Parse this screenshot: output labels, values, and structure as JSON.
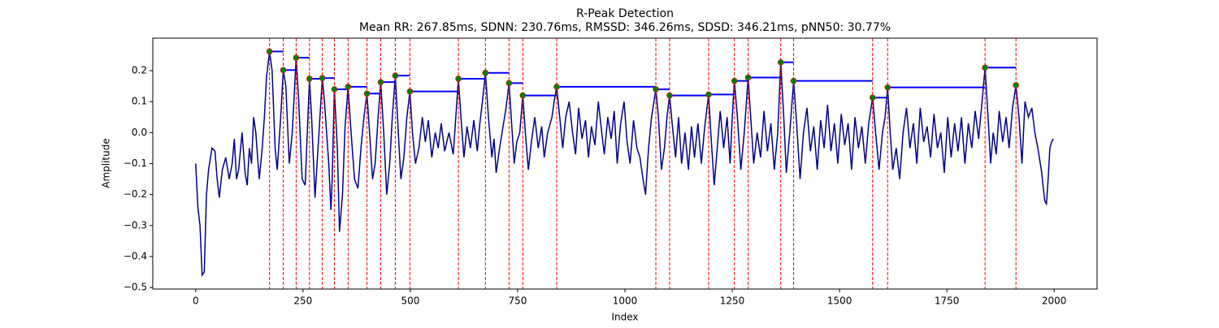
{
  "chart_data": {
    "type": "line",
    "title": "R-Peak Detection",
    "subtitle": "Mean RR: 267.85ms, SDNN: 230.76ms, RMSSD: 346.26ms, SDSD: 346.21ms, pNN50: 30.77%",
    "xlabel": "Index",
    "ylabel": "Amplitude",
    "xlim": [
      -100,
      2100
    ],
    "ylim": [
      -0.505,
      0.305
    ],
    "xticks": [
      0,
      250,
      500,
      750,
      1000,
      1250,
      1500,
      1750,
      2000
    ],
    "yticks": [
      {
        "value": -0.5,
        "label": "−0.5"
      },
      {
        "value": -0.4,
        "label": "−0.4"
      },
      {
        "value": -0.3,
        "label": "−0.3"
      },
      {
        "value": -0.2,
        "label": "−0.2"
      },
      {
        "value": -0.1,
        "label": "−0.1"
      },
      {
        "value": 0,
        "label": "0.0"
      },
      0.1,
      0.2
    ],
    "color": "#00008b",
    "x": [
      0,
      5,
      10,
      15,
      20,
      25,
      30,
      38,
      45,
      50,
      55,
      62,
      70,
      78,
      85,
      90,
      95,
      100,
      108,
      115,
      120,
      125,
      130,
      135,
      140,
      148,
      155,
      160,
      165,
      172,
      178,
      185,
      190,
      198,
      204,
      210,
      218,
      225,
      234,
      240,
      248,
      255,
      260,
      265,
      270,
      278,
      285,
      295,
      300,
      310,
      315,
      318,
      323,
      330,
      335,
      342,
      348,
      355,
      362,
      370,
      378,
      385,
      392,
      399,
      405,
      412,
      418,
      425,
      431,
      438,
      445,
      452,
      458,
      465,
      472,
      478,
      485,
      492,
      499,
      505,
      512,
      520,
      528,
      535,
      542,
      550,
      558,
      565,
      572,
      580,
      590,
      600,
      606,
      612,
      618,
      625,
      632,
      640,
      648,
      656,
      662,
      668,
      675,
      682,
      690,
      695,
      700,
      708,
      716,
      723,
      730,
      736,
      742,
      748,
      755,
      762,
      768,
      775,
      782,
      790,
      798,
      806,
      812,
      820,
      830,
      835,
      841,
      848,
      855,
      862,
      870,
      878,
      885,
      892,
      900,
      908,
      915,
      922,
      930,
      938,
      946,
      952,
      960,
      968,
      975,
      982,
      990,
      998,
      1005,
      1012,
      1020,
      1028,
      1035,
      1042,
      1048,
      1055,
      1062,
      1072,
      1078,
      1085,
      1092,
      1098,
      1104,
      1110,
      1118,
      1125,
      1132,
      1140,
      1148,
      1155,
      1162,
      1170,
      1178,
      1186,
      1195,
      1200,
      1208,
      1215,
      1222,
      1230,
      1238,
      1245,
      1250,
      1255,
      1262,
      1270,
      1278,
      1287,
      1293,
      1300,
      1308,
      1316,
      1324,
      1332,
      1340,
      1348,
      1356,
      1363,
      1370,
      1376,
      1384,
      1393,
      1400,
      1408,
      1416,
      1424,
      1432,
      1440,
      1448,
      1456,
      1464,
      1472,
      1480,
      1488,
      1496,
      1504,
      1512,
      1520,
      1528,
      1536,
      1544,
      1552,
      1560,
      1568,
      1577,
      1584,
      1592,
      1600,
      1606,
      1612,
      1618,
      1624,
      1632,
      1640,
      1648,
      1656,
      1664,
      1672,
      1680,
      1688,
      1696,
      1704,
      1712,
      1720,
      1728,
      1736,
      1744,
      1752,
      1760,
      1768,
      1776,
      1784,
      1792,
      1800,
      1808,
      1816,
      1824,
      1832,
      1839,
      1846,
      1852,
      1858,
      1865,
      1872,
      1880,
      1888,
      1895,
      1903,
      1911,
      1918,
      1925,
      1932,
      1940,
      1948,
      1955,
      1962,
      1970,
      1978,
      1982,
      1986,
      1990,
      1994,
      1998
    ],
    "values": [
      -0.1,
      -0.24,
      -0.3,
      -0.46,
      -0.45,
      -0.2,
      -0.12,
      -0.05,
      -0.06,
      -0.15,
      -0.21,
      -0.12,
      -0.08,
      -0.15,
      -0.1,
      -0.02,
      -0.15,
      -0.12,
      0.0,
      -0.13,
      -0.17,
      -0.05,
      -0.1,
      0.05,
      0.0,
      -0.15,
      -0.05,
      0.05,
      0.18,
      0.262,
      0.2,
      -0.05,
      -0.12,
      0.05,
      0.202,
      0.15,
      -0.1,
      0.0,
      0.242,
      0.1,
      -0.15,
      -0.17,
      0.0,
      0.174,
      0.05,
      -0.21,
      -0.05,
      0.176,
      0.1,
      -0.1,
      -0.25,
      -0.15,
      0.14,
      -0.05,
      -0.32,
      -0.2,
      0.02,
      0.148,
      0.0,
      -0.15,
      -0.18,
      -0.05,
      0.05,
      0.126,
      0.0,
      -0.15,
      -0.1,
      0.05,
      0.163,
      0.0,
      -0.2,
      -0.1,
      0.05,
      0.184,
      0.0,
      -0.15,
      -0.08,
      0.05,
      0.133,
      0.0,
      -0.1,
      -0.05,
      0.05,
      -0.03,
      0.04,
      -0.08,
      0.0,
      -0.05,
      0.03,
      -0.06,
      0.0,
      -0.07,
      0.05,
      0.174,
      0.05,
      -0.08,
      0.02,
      -0.05,
      0.04,
      -0.06,
      0.03,
      0.1,
      0.193,
      0.05,
      -0.08,
      -0.02,
      -0.13,
      -0.05,
      0.02,
      0.08,
      0.16,
      0.03,
      -0.1,
      -0.03,
      0.0,
      0.12,
      0.0,
      -0.12,
      -0.03,
      0.05,
      -0.05,
      0.02,
      -0.08,
      0.0,
      0.05,
      0.1,
      0.148,
      0.05,
      -0.05,
      0.05,
      0.1,
      0.0,
      -0.07,
      0.08,
      -0.02,
      0.04,
      -0.08,
      0.02,
      -0.04,
      0.1,
      0.0,
      -0.07,
      0.05,
      -0.02,
      0.07,
      -0.1,
      0.03,
      0.1,
      -0.03,
      -0.1,
      0.04,
      -0.05,
      -0.08,
      -0.15,
      -0.2,
      -0.05,
      0.05,
      0.14,
      0.05,
      -0.12,
      -0.05,
      0.05,
      0.12,
      0.03,
      -0.08,
      0.05,
      -0.1,
      0.0,
      -0.12,
      0.02,
      -0.08,
      0.03,
      -0.1,
      0.02,
      0.123,
      0.0,
      -0.17,
      -0.05,
      0.07,
      -0.05,
      0.05,
      -0.1,
      0.05,
      0.167,
      0.05,
      -0.12,
      0.0,
      0.178,
      0.05,
      -0.1,
      0.0,
      -0.08,
      0.07,
      -0.06,
      0.03,
      -0.12,
      0.0,
      0.227,
      0.05,
      -0.13,
      0.0,
      0.167,
      0.03,
      -0.15,
      0.0,
      0.08,
      -0.06,
      0.02,
      -0.12,
      0.04,
      -0.05,
      0.09,
      -0.06,
      0.03,
      -0.1,
      0.06,
      -0.04,
      0.03,
      -0.12,
      0.05,
      -0.05,
      0.02,
      -0.1,
      0.03,
      0.113,
      0.0,
      -0.12,
      0.0,
      0.05,
      0.146,
      0.0,
      -0.12,
      -0.05,
      -0.15,
      0.0,
      0.08,
      -0.05,
      0.03,
      -0.1,
      0.08,
      -0.03,
      0.02,
      -0.08,
      0.06,
      -0.05,
      0.0,
      -0.13,
      0.05,
      -0.08,
      0.03,
      -0.06,
      0.05,
      -0.1,
      0.03,
      -0.05,
      0.07,
      -0.02,
      0.1,
      0.21,
      0.05,
      -0.1,
      0.0,
      -0.07,
      0.07,
      -0.03,
      0.05,
      -0.05,
      0.08,
      0.153,
      0.05,
      -0.1,
      0.1,
      0.05,
      0.08,
      0.0,
      -0.05,
      -0.12,
      -0.22,
      -0.23,
      -0.15,
      -0.05,
      -0.03,
      -0.02
    ],
    "peaks": {
      "color": "green",
      "line_color": "red",
      "rr_color": "blue",
      "x": [
        172,
        204,
        234,
        265,
        295,
        323,
        355,
        399,
        431,
        465,
        499,
        612,
        675,
        730,
        762,
        841,
        1072,
        1104,
        1195,
        1255,
        1287,
        1363,
        1393,
        1577,
        1612,
        1839,
        1911
      ],
      "values": [
        0.262,
        0.202,
        0.242,
        0.174,
        0.176,
        0.14,
        0.148,
        0.126,
        0.163,
        0.184,
        0.133,
        0.174,
        0.193,
        0.16,
        0.12,
        0.148,
        0.14,
        0.12,
        0.123,
        0.167,
        0.178,
        0.227,
        0.167,
        0.113,
        0.146,
        0.21,
        0.153
      ]
    }
  }
}
